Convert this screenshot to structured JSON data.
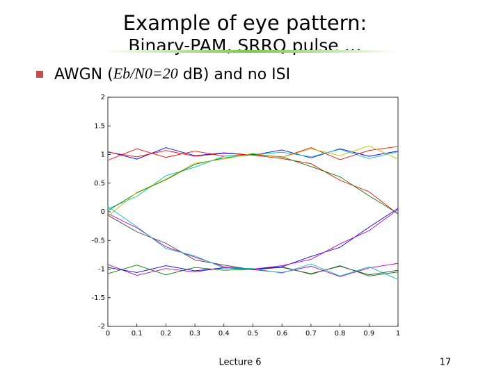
{
  "slide": {
    "title": [
      "Example of eye pattern:",
      "Binary-PAM, SRRQ pulse …"
    ],
    "bullet": [
      "AWGN (",
      "Eb/N0=20",
      " dB) and no ISI"
    ],
    "footer": "Lecture 6",
    "page_number": "17"
  },
  "chart_data": {
    "type": "line",
    "x": [
      0,
      0.1,
      0.2,
      0.3,
      0.4,
      0.5,
      0.6,
      0.7,
      0.8,
      0.9,
      1
    ],
    "xlim": [
      0,
      1
    ],
    "xticks": [
      0,
      0.1,
      0.2,
      0.3,
      0.4,
      0.5,
      0.6,
      0.7,
      0.8,
      0.9,
      1
    ],
    "ylim": [
      -2,
      2
    ],
    "yticks": [
      -2,
      -1.5,
      -1,
      -0.5,
      0,
      0.5,
      1,
      1.5,
      2
    ],
    "grid": false,
    "series": [
      {
        "color": "#0000ff",
        "values": [
          1.05,
          0.92,
          1.12,
          0.98,
          1.03,
          0.99,
          1.08,
          0.94,
          1.1,
          0.97,
          1.06
        ]
      },
      {
        "color": "#ff0000",
        "values": [
          0.9,
          1.1,
          0.95,
          1.06,
          0.97,
          1.01,
          0.95,
          1.12,
          0.91,
          1.07,
          1.14
        ]
      },
      {
        "color": "#008000",
        "values": [
          -1.08,
          -0.93,
          -1.1,
          -0.97,
          -1.02,
          -1.0,
          -0.96,
          -1.09,
          -0.94,
          -1.12,
          -1.05
        ]
      },
      {
        "color": "#bf00bf",
        "values": [
          -0.92,
          -1.11,
          -0.99,
          -1.05,
          -0.97,
          -1.01,
          -1.06,
          -0.95,
          -1.13,
          -0.98,
          -0.9
        ]
      },
      {
        "color": "#00bfbf",
        "values": [
          0.05,
          0.27,
          0.63,
          0.78,
          0.97,
          1.0,
          1.04,
          0.96,
          1.09,
          0.93,
          1.05
        ]
      },
      {
        "color": "#404040",
        "values": [
          -0.06,
          -0.35,
          -0.55,
          -0.84,
          -0.93,
          -1.01,
          -0.97,
          -1.08,
          -0.95,
          -1.1,
          -1.02
        ]
      },
      {
        "color": "#ff0000",
        "values": [
          1.04,
          0.96,
          1.07,
          0.97,
          1.02,
          0.99,
          0.93,
          0.84,
          0.55,
          0.35,
          -0.04
        ]
      },
      {
        "color": "#0000ff",
        "values": [
          -0.97,
          -1.06,
          -0.94,
          -1.03,
          -0.98,
          -1.0,
          -0.96,
          -0.78,
          -0.62,
          -0.27,
          0.06
        ]
      },
      {
        "color": "#008000",
        "values": [
          0.02,
          0.33,
          0.56,
          0.83,
          0.94,
          1.0,
          0.96,
          0.79,
          0.61,
          0.28,
          -0.03
        ]
      },
      {
        "color": "#bf00bf",
        "values": [
          -0.03,
          -0.28,
          -0.61,
          -0.79,
          -0.96,
          -1.0,
          -0.94,
          -0.83,
          -0.56,
          -0.33,
          0.04
        ]
      },
      {
        "color": "#bfbf00",
        "values": [
          -0.08,
          0.34,
          0.57,
          0.85,
          0.92,
          1.02,
          0.95,
          1.1,
          0.98,
          1.15,
          0.92
        ]
      },
      {
        "color": "#00bfbf",
        "values": [
          0.09,
          -0.26,
          -0.64,
          -0.77,
          -0.98,
          -0.99,
          -1.07,
          -0.91,
          -1.12,
          -0.96,
          -1.18
        ]
      }
    ]
  }
}
